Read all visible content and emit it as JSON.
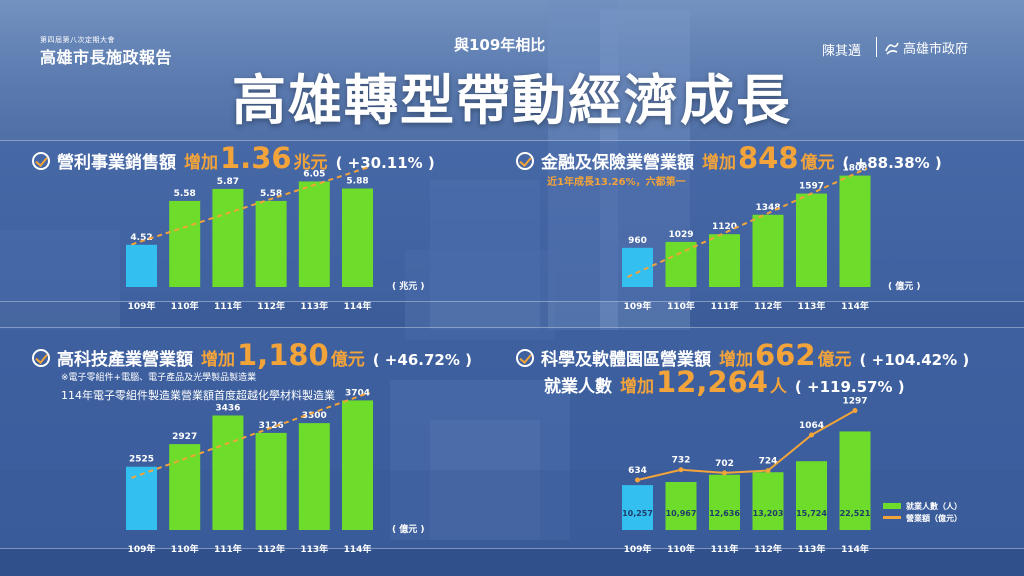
{
  "header": {
    "event_name": "第四屆第八次定期大會",
    "report_name": "高雄市長施政報告",
    "subtitle": "與109年相比",
    "main_title": "高雄轉型帶動經濟成長",
    "mayor": "陳其邁",
    "government": "高雄市政府"
  },
  "colors": {
    "bar_first": "#33c0f0",
    "bar_rest": "#6edc2a",
    "trend": "#f2a33a",
    "accent": "#f2a33a"
  },
  "sections": {
    "revenue": {
      "label": "營利事業銷售額",
      "increase_word": "增加",
      "increase_value": "1.36",
      "unit": "兆元",
      "pct": "( +30.11% )"
    },
    "finance": {
      "label": "金融及保險業營業額",
      "increase_word": "增加",
      "increase_value": "848",
      "unit": "億元",
      "pct": "( +88.38% )",
      "note": "近1年成長13.26%，六都第一"
    },
    "hightech": {
      "label": "高科技產業營業額",
      "increase_word": "增加",
      "increase_value": "1,180",
      "unit": "億元",
      "pct": "( +46.72% )",
      "note1": "※電子零組件+電腦、電子產品及光學製品製造業",
      "note2": "114年電子零組件製造業營業額首度超越化學材料製造業"
    },
    "sciencepark": {
      "label": "科學及軟體園區營業額",
      "increase_word": "增加",
      "increase_value": "662",
      "unit": "億元",
      "pct": "( +104.42% )",
      "label2": "就業人數",
      "increase_word2": "增加",
      "increase_value2": "12,264",
      "unit2": "人",
      "pct2": "( +119.57% )"
    }
  },
  "chart_data": [
    {
      "id": "revenue",
      "type": "bar",
      "categories": [
        "109年",
        "110年",
        "111年",
        "112年",
        "113年",
        "114年"
      ],
      "values": [
        4.52,
        5.58,
        5.87,
        5.58,
        6.05,
        5.88
      ],
      "labels": [
        "4.52",
        "5.58",
        "5.87",
        "5.58",
        "6.05",
        "5.88"
      ],
      "unit_label": "( 兆元 )",
      "trendline": true,
      "ylim": [
        3.5,
        6.4
      ]
    },
    {
      "id": "finance",
      "type": "bar",
      "categories": [
        "109年",
        "110年",
        "111年",
        "112年",
        "113年",
        "114年"
      ],
      "values": [
        960,
        1029,
        1120,
        1348,
        1597,
        1808
      ],
      "labels": [
        "960",
        "1029",
        "1120",
        "1348",
        "1597",
        "1808"
      ],
      "unit_label": "( 億元 )",
      "trendline": true,
      "ylim": [
        500,
        1850
      ]
    },
    {
      "id": "hightech",
      "type": "bar",
      "categories": [
        "109年",
        "110年",
        "111年",
        "112年",
        "113年",
        "114年"
      ],
      "values": [
        2525,
        2927,
        3436,
        3126,
        3300,
        3704
      ],
      "labels": [
        "2525",
        "2927",
        "3436",
        "3126",
        "3300",
        "3704"
      ],
      "unit_label": "( 億元 )",
      "trendline": true,
      "ylim": [
        1400,
        3800
      ]
    },
    {
      "id": "sciencepark",
      "type": "bar",
      "categories": [
        "109年",
        "110年",
        "111年",
        "112年",
        "113年",
        "114年"
      ],
      "series": [
        {
          "name": "就業人數（人）",
          "type": "bar",
          "values": [
            10257,
            10967,
            12636,
            13203,
            15724,
            22521
          ],
          "labels": [
            "10,257",
            "10,967",
            "12,636",
            "13,203",
            "15,724",
            "22,521"
          ]
        },
        {
          "name": "營業額（億元）",
          "type": "line",
          "values": [
            634,
            732,
            702,
            724,
            1064,
            1297
          ],
          "labels": [
            "634",
            "732",
            "702",
            "724",
            "1064",
            "1297"
          ]
        }
      ],
      "legend": "bottom-right"
    }
  ]
}
